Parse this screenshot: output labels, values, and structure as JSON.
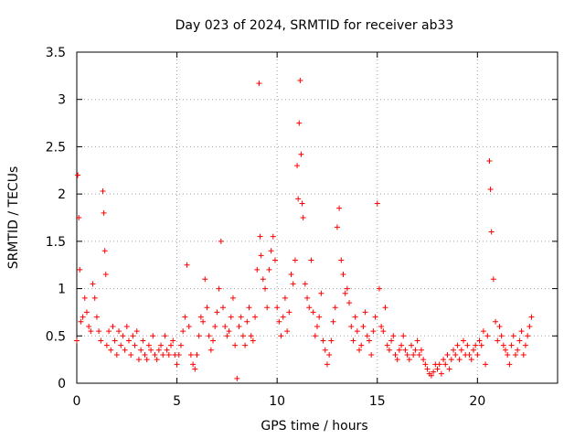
{
  "chart_data": {
    "type": "scatter",
    "title": "Day 023 of 2024, SRMTID for receiver ab33",
    "xlabel": "GPS time / hours",
    "ylabel": "SRMTID / TECUs",
    "xlim": [
      0,
      24
    ],
    "ylim": [
      0,
      3.5
    ],
    "x_ticks": [
      0,
      5,
      10,
      15,
      20
    ],
    "y_ticks": [
      0,
      0.5,
      1,
      1.5,
      2,
      2.5,
      3,
      3.5
    ],
    "x_tick_labels": [
      "0",
      "5",
      "10",
      "15",
      "20"
    ],
    "y_tick_labels": [
      "0",
      "0.5",
      "1",
      "1.5",
      "2",
      "2.5",
      "3",
      "3.5"
    ],
    "grid": true,
    "marker": "+",
    "series": [
      {
        "name": "SRMTID",
        "color": "#ff0000",
        "x": [
          0.0,
          0.05,
          0.1,
          0.15,
          0.2,
          0.3,
          0.4,
          0.5,
          0.6,
          0.7,
          0.8,
          0.9,
          1.0,
          1.1,
          1.2,
          1.3,
          1.35,
          1.4,
          1.45,
          1.5,
          1.6,
          1.7,
          1.8,
          1.9,
          2.0,
          2.1,
          2.2,
          2.3,
          2.4,
          2.5,
          2.6,
          2.7,
          2.8,
          2.9,
          3.0,
          3.1,
          3.2,
          3.3,
          3.4,
          3.5,
          3.6,
          3.7,
          3.8,
          3.9,
          4.0,
          4.1,
          4.2,
          4.3,
          4.4,
          4.5,
          4.6,
          4.7,
          4.8,
          4.9,
          5.0,
          5.1,
          5.2,
          5.3,
          5.4,
          5.5,
          5.6,
          5.7,
          5.8,
          5.9,
          6.0,
          6.1,
          6.2,
          6.3,
          6.4,
          6.5,
          6.6,
          6.7,
          6.8,
          6.9,
          7.0,
          7.1,
          7.2,
          7.3,
          7.4,
          7.5,
          7.6,
          7.7,
          7.8,
          7.9,
          8.0,
          8.1,
          8.2,
          8.3,
          8.4,
          8.5,
          8.6,
          8.7,
          8.8,
          8.9,
          9.0,
          9.1,
          9.15,
          9.2,
          9.3,
          9.4,
          9.5,
          9.6,
          9.7,
          9.8,
          9.9,
          10.0,
          10.1,
          10.2,
          10.3,
          10.4,
          10.5,
          10.6,
          10.7,
          10.8,
          10.9,
          11.0,
          11.05,
          11.1,
          11.15,
          11.2,
          11.25,
          11.3,
          11.4,
          11.5,
          11.6,
          11.7,
          11.8,
          11.9,
          12.0,
          12.1,
          12.2,
          12.3,
          12.4,
          12.5,
          12.6,
          12.7,
          12.8,
          12.9,
          13.0,
          13.1,
          13.2,
          13.3,
          13.4,
          13.5,
          13.6,
          13.7,
          13.8,
          13.9,
          14.0,
          14.1,
          14.2,
          14.3,
          14.4,
          14.5,
          14.6,
          14.7,
          14.8,
          14.9,
          15.0,
          15.1,
          15.2,
          15.3,
          15.4,
          15.5,
          15.6,
          15.7,
          15.8,
          15.9,
          16.0,
          16.1,
          16.2,
          16.3,
          16.4,
          16.5,
          16.6,
          16.7,
          16.8,
          16.9,
          17.0,
          17.1,
          17.2,
          17.3,
          17.4,
          17.5,
          17.6,
          17.7,
          17.8,
          17.9,
          18.0,
          18.1,
          18.2,
          18.3,
          18.4,
          18.5,
          18.6,
          18.7,
          18.8,
          18.9,
          19.0,
          19.1,
          19.2,
          19.3,
          19.4,
          19.5,
          19.6,
          19.7,
          19.8,
          19.9,
          20.0,
          20.1,
          20.2,
          20.3,
          20.4,
          20.5,
          20.6,
          20.65,
          20.7,
          20.8,
          20.9,
          21.0,
          21.1,
          21.2,
          21.3,
          21.4,
          21.5,
          21.6,
          21.7,
          21.8,
          21.9,
          22.0,
          22.1,
          22.2,
          22.3,
          22.4,
          22.5,
          22.6,
          22.7
        ],
        "y": [
          0.45,
          2.2,
          1.75,
          1.2,
          0.65,
          0.7,
          0.9,
          0.75,
          0.6,
          0.55,
          1.05,
          0.9,
          0.7,
          0.55,
          0.45,
          2.03,
          1.8,
          1.4,
          1.15,
          0.4,
          0.55,
          0.35,
          0.6,
          0.45,
          0.3,
          0.55,
          0.4,
          0.5,
          0.35,
          0.6,
          0.45,
          0.3,
          0.5,
          0.4,
          0.55,
          0.25,
          0.35,
          0.45,
          0.3,
          0.25,
          0.4,
          0.35,
          0.5,
          0.3,
          0.25,
          0.35,
          0.4,
          0.3,
          0.5,
          0.35,
          0.3,
          0.4,
          0.45,
          0.3,
          0.2,
          0.3,
          0.4,
          0.55,
          0.7,
          1.25,
          0.6,
          0.3,
          0.2,
          0.15,
          0.3,
          0.5,
          0.7,
          0.65,
          1.1,
          0.8,
          0.5,
          0.35,
          0.45,
          0.6,
          0.75,
          1.0,
          1.5,
          0.8,
          0.6,
          0.5,
          0.55,
          0.7,
          0.9,
          0.4,
          0.05,
          0.6,
          0.7,
          0.5,
          0.4,
          0.65,
          0.8,
          0.5,
          0.45,
          0.7,
          1.2,
          3.17,
          1.55,
          1.35,
          1.1,
          1.0,
          0.8,
          1.2,
          1.4,
          1.55,
          1.3,
          0.8,
          0.65,
          0.5,
          0.7,
          0.9,
          0.55,
          0.75,
          1.15,
          1.05,
          1.3,
          2.3,
          1.95,
          2.75,
          3.2,
          2.42,
          1.9,
          1.75,
          1.05,
          0.9,
          0.8,
          1.3,
          0.75,
          0.5,
          0.6,
          0.7,
          0.95,
          0.45,
          0.35,
          0.2,
          0.3,
          0.45,
          0.65,
          0.8,
          1.65,
          1.85,
          1.3,
          1.15,
          0.95,
          1.0,
          0.85,
          0.6,
          0.45,
          0.7,
          0.55,
          0.35,
          0.4,
          0.6,
          0.75,
          0.5,
          0.45,
          0.3,
          0.55,
          0.7,
          1.9,
          1.0,
          0.6,
          0.55,
          0.8,
          0.4,
          0.35,
          0.45,
          0.5,
          0.3,
          0.25,
          0.35,
          0.4,
          0.5,
          0.35,
          0.3,
          0.25,
          0.4,
          0.3,
          0.35,
          0.45,
          0.3,
          0.35,
          0.25,
          0.2,
          0.15,
          0.1,
          0.08,
          0.12,
          0.2,
          0.15,
          0.2,
          0.1,
          0.25,
          0.2,
          0.3,
          0.15,
          0.25,
          0.35,
          0.3,
          0.4,
          0.25,
          0.35,
          0.45,
          0.3,
          0.4,
          0.3,
          0.25,
          0.35,
          0.4,
          0.3,
          0.45,
          0.4,
          0.55,
          0.2,
          0.5,
          2.35,
          2.05,
          1.6,
          1.1,
          0.65,
          0.45,
          0.6,
          0.5,
          0.4,
          0.35,
          0.3,
          0.2,
          0.4,
          0.5,
          0.3,
          0.35,
          0.45,
          0.55,
          0.3,
          0.4,
          0.5,
          0.6,
          0.7
        ]
      }
    ]
  }
}
